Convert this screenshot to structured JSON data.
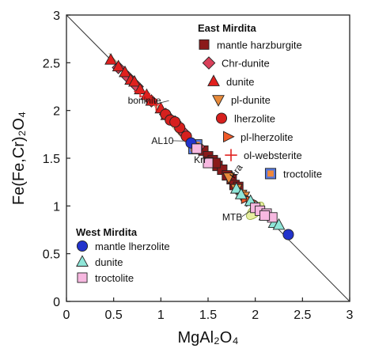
{
  "chart_data": {
    "type": "scatter",
    "xlabel": "MgAl₂O₄",
    "ylabel": "Fe(Fe,Cr)₂O₄",
    "xlim": [
      0,
      3
    ],
    "ylim": [
      0,
      3
    ],
    "xticks": [
      "0",
      "0.5",
      "1",
      "1.5",
      "2",
      "2.5",
      "3"
    ],
    "yticks": [
      "0",
      "0.5",
      "1",
      "1.5",
      "2",
      "2.5",
      "3"
    ],
    "grid": false,
    "reference_line": {
      "from": [
        0,
        3
      ],
      "to": [
        3,
        0
      ]
    },
    "legend_groups": [
      {
        "title": "East Mirdita",
        "placement": "top-right"
      },
      {
        "title": "West Mirdita",
        "placement": "bottom-left"
      }
    ],
    "series": [
      {
        "name": "mantle harzburgite",
        "group": "East Mirdita",
        "marker": "square",
        "color": "#8b1a1a",
        "points": [
          [
            1.45,
            1.58
          ],
          [
            1.5,
            1.52
          ],
          [
            1.55,
            1.48
          ],
          [
            1.6,
            1.42
          ],
          [
            1.5,
            1.46
          ],
          [
            1.65,
            1.38
          ],
          [
            1.7,
            1.32
          ],
          [
            1.75,
            1.28
          ],
          [
            1.78,
            1.22
          ],
          [
            1.82,
            1.2
          ],
          [
            1.58,
            1.45
          ]
        ]
      },
      {
        "name": "Chr-dunite",
        "group": "East Mirdita",
        "marker": "diamond",
        "color": "#d9405a",
        "points": [
          [
            0.55,
            2.45
          ],
          [
            0.65,
            2.35
          ],
          [
            0.75,
            2.25
          ],
          [
            0.9,
            2.1
          ],
          [
            1.05,
            1.96
          ],
          [
            1.15,
            1.88
          ],
          [
            1.25,
            1.76
          ],
          [
            1.4,
            1.62
          ]
        ]
      },
      {
        "name": "dunite",
        "group": "East Mirdita",
        "marker": "triangle-up",
        "color": "#e0201e",
        "points": [
          [
            0.47,
            2.53
          ],
          [
            0.55,
            2.46
          ],
          [
            0.62,
            2.4
          ],
          [
            0.68,
            2.32
          ],
          [
            0.72,
            2.3
          ],
          [
            0.78,
            2.22
          ],
          [
            0.85,
            2.16
          ],
          [
            0.9,
            2.1
          ],
          [
            1.0,
            2.02
          ],
          [
            1.06,
            1.95
          ]
        ]
      },
      {
        "name": "pl-dunite",
        "group": "East Mirdita",
        "marker": "triangle-down",
        "color": "#e88a3a",
        "points": [
          [
            1.72,
            1.3
          ],
          [
            1.8,
            1.18
          ],
          [
            1.85,
            1.12
          ],
          [
            1.88,
            1.1
          ]
        ]
      },
      {
        "name": "lherzolite",
        "group": "East Mirdita",
        "marker": "circle",
        "color": "#d6201e",
        "points": [
          [
            1.05,
            1.96
          ],
          [
            1.1,
            1.9
          ],
          [
            1.2,
            1.82
          ],
          [
            1.27,
            1.73
          ],
          [
            1.15,
            1.88
          ]
        ]
      },
      {
        "name": "pl-lherzolite",
        "group": "East Mirdita",
        "marker": "triangle-right",
        "color": "#ef5a2a",
        "points": [
          [
            1.9,
            1.08
          ],
          [
            1.95,
            1.05
          ]
        ]
      },
      {
        "name": "ol-websterite",
        "group": "East Mirdita",
        "marker": "plus",
        "color": "#e0201e",
        "points": [
          [
            0.78,
            2.2
          ],
          [
            0.85,
            2.15
          ],
          [
            0.88,
            2.12
          ],
          [
            0.95,
            2.06
          ]
        ]
      },
      {
        "name": "troctolite",
        "group": "East Mirdita",
        "marker": "square-inset",
        "color": "#f0883a",
        "points": [
          [
            1.38,
            1.64
          ],
          [
            1.35,
            1.6
          ]
        ]
      },
      {
        "name": "mantle lherzolite",
        "group": "West Mirdita",
        "marker": "circle",
        "color": "#2233cc",
        "points": [
          [
            1.32,
            1.66
          ],
          [
            2.35,
            0.7
          ]
        ]
      },
      {
        "name": "dunite",
        "group": "West Mirdita",
        "marker": "triangle-up",
        "color": "#8fe6d8",
        "points": [
          [
            1.8,
            1.18
          ],
          [
            1.85,
            1.12
          ],
          [
            1.95,
            1.05
          ],
          [
            2.02,
            0.98
          ],
          [
            2.1,
            0.9
          ],
          [
            2.2,
            0.82
          ],
          [
            2.25,
            0.8
          ]
        ]
      },
      {
        "name": "troctolite",
        "group": "West Mirdita",
        "marker": "square",
        "color": "#f7b8e0",
        "points": [
          [
            1.38,
            1.6
          ],
          [
            1.5,
            1.45
          ],
          [
            2.0,
            0.98
          ],
          [
            2.05,
            0.95
          ],
          [
            2.12,
            0.92
          ],
          [
            2.18,
            0.88
          ],
          [
            2.1,
            0.9
          ]
        ]
      }
    ],
    "annotations": [
      {
        "text": "boninite",
        "x": 0.65,
        "y": 2.07
      },
      {
        "text": "AL10",
        "x": 0.9,
        "y": 1.65
      },
      {
        "text": "Krr",
        "x": 1.35,
        "y": 1.45
      },
      {
        "text": "Kra",
        "x": 1.78,
        "y": 1.28
      },
      {
        "text": "MTB",
        "x": 1.65,
        "y": 0.85
      }
    ]
  }
}
